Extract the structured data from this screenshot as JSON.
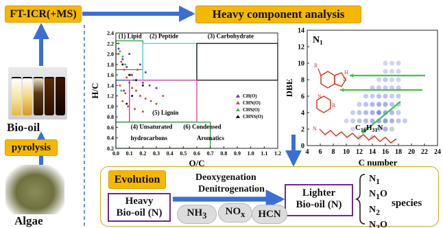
{
  "labels": {
    "ft_icr": "FT-ICR(+MS)",
    "heavy_component": "Heavy component analysis",
    "pyrolysis": "pyrolysis",
    "bio_oil": "Bio-oil",
    "algae": "Algae",
    "evolution": "Evolution",
    "heavy_bio_oil_line1": "Heavy",
    "heavy_bio_oil_line2": "Bio-oil (N)",
    "lighter_bio_oil_line1": "Lighter",
    "lighter_bio_oil_line2": "Bio-oil (N)",
    "deoxygenation": "Deoxygenation",
    "denitrogenation": "Denitrogenation",
    "species": "species",
    "gases": [
      "NH3",
      "NOx",
      "HCN"
    ]
  },
  "species_items": [
    "N1",
    "N1O",
    "N2",
    "N2O"
  ],
  "colors": {
    "accent": "#f5b800",
    "arrow_blue": "#3b6fd4",
    "box_purple": "#6b2a8e",
    "ch": "#7a2fb5",
    "chn": "#e0443e",
    "chs": "#33b84a",
    "chns": "#111111"
  },
  "chart_data": [
    {
      "type": "scatter",
      "xlabel": "O/C",
      "ylabel": "H/C",
      "xlim": [
        0,
        1.2
      ],
      "ylim": [
        0.2,
        2.4
      ],
      "xticks": [
        "0.0",
        "0.1",
        "0.2",
        "0.3",
        "0.4",
        "0.5",
        "0.6",
        "0.7",
        "0.8",
        "0.9",
        "1.0",
        "1.1",
        "1.2"
      ],
      "yticks": [
        "0.2",
        "0.4",
        "0.6",
        "0.8",
        "1.0",
        "1.2",
        "1.4",
        "1.6",
        "1.8",
        "2.0",
        "2.2",
        "2.4"
      ],
      "legend_position": "right",
      "series": [
        {
          "name": "CH(O)",
          "color": "#7a2fb5",
          "x": [
            0.02,
            0.05,
            0.08,
            0.12,
            0.15,
            0.2,
            0.25,
            0.3,
            0.18,
            0.1,
            0.06,
            0.22
          ],
          "y": [
            2.1,
            1.9,
            1.75,
            1.6,
            1.5,
            1.45,
            1.4,
            1.35,
            1.8,
            2.0,
            1.3,
            1.65
          ]
        },
        {
          "name": "CHN(O)",
          "color": "#e0443e",
          "x": [
            0.02,
            0.04,
            0.06,
            0.08,
            0.1,
            0.12,
            0.15,
            0.18,
            0.22,
            0.26,
            0.3,
            0.35,
            0.05,
            0.09,
            0.14,
            0.2,
            0.03,
            0.07,
            0.11,
            0.16
          ],
          "y": [
            2.0,
            1.85,
            1.7,
            1.55,
            1.45,
            1.35,
            1.3,
            1.2,
            1.15,
            1.1,
            1.05,
            1.2,
            1.1,
            1.0,
            0.95,
            0.9,
            1.4,
            1.25,
            1.6,
            1.7
          ]
        },
        {
          "name": "CHS(O)",
          "color": "#33b84a",
          "x": [
            0.02,
            0.03,
            0.05,
            0.07,
            0.1,
            0.13,
            0.04
          ],
          "y": [
            2.2,
            2.05,
            1.95,
            1.8,
            1.6,
            1.5,
            1.3
          ]
        },
        {
          "name": "CHNS(O)",
          "color": "#111111",
          "x": [
            0.05,
            0.1,
            0.15,
            0.2,
            0.12,
            0.08
          ],
          "y": [
            1.8,
            1.6,
            1.5,
            1.4,
            1.2,
            1.05
          ]
        }
      ],
      "annotations": [
        "(1) Lipid",
        "(2) Peptide",
        "(3) Carbohydrate",
        "(4) Unsaturated",
        "hydrocarbons",
        "(5) Lignin",
        "(6) Condensed",
        "Aromatics"
      ]
    },
    {
      "type": "scatter",
      "title": "N1",
      "xlabel": "C number",
      "ylabel": "DBE",
      "xlim": [
        4,
        24
      ],
      "ylim": [
        0,
        14
      ],
      "xticks": [
        "4",
        "6",
        "8",
        "10",
        "12",
        "14",
        "16",
        "18",
        "20",
        "22",
        "24"
      ],
      "yticks": [
        "0",
        "2",
        "4",
        "6",
        "8",
        "10",
        "12",
        "14"
      ],
      "annotation": "C16H31N",
      "points": [
        {
          "x": 10,
          "y": 3,
          "v": 0.2
        },
        {
          "x": 11,
          "y": 3,
          "v": 0.3
        },
        {
          "x": 12,
          "y": 3,
          "v": 0.4
        },
        {
          "x": 13,
          "y": 3,
          "v": 0.5
        },
        {
          "x": 14,
          "y": 3,
          "v": 0.6
        },
        {
          "x": 15,
          "y": 3,
          "v": 0.7
        },
        {
          "x": 16,
          "y": 3,
          "v": 0.8
        },
        {
          "x": 17,
          "y": 3,
          "v": 0.6
        },
        {
          "x": 18,
          "y": 3,
          "v": 0.4
        },
        {
          "x": 19,
          "y": 3,
          "v": 0.3
        },
        {
          "x": 11,
          "y": 4,
          "v": 0.3
        },
        {
          "x": 12,
          "y": 4,
          "v": 0.4
        },
        {
          "x": 13,
          "y": 4,
          "v": 0.5
        },
        {
          "x": 14,
          "y": 4,
          "v": 0.6
        },
        {
          "x": 15,
          "y": 4,
          "v": 0.9
        },
        {
          "x": 16,
          "y": 4,
          "v": 0.7
        },
        {
          "x": 17,
          "y": 4,
          "v": 0.5
        },
        {
          "x": 18,
          "y": 4,
          "v": 0.3
        },
        {
          "x": 12,
          "y": 5,
          "v": 0.3
        },
        {
          "x": 13,
          "y": 5,
          "v": 0.4
        },
        {
          "x": 14,
          "y": 5,
          "v": 0.5
        },
        {
          "x": 15,
          "y": 5,
          "v": 0.6
        },
        {
          "x": 16,
          "y": 5,
          "v": 0.6
        },
        {
          "x": 17,
          "y": 5,
          "v": 0.4
        },
        {
          "x": 18,
          "y": 5,
          "v": 0.3
        },
        {
          "x": 13,
          "y": 6,
          "v": 0.3
        },
        {
          "x": 14,
          "y": 6,
          "v": 0.3
        },
        {
          "x": 15,
          "y": 6,
          "v": 0.4
        },
        {
          "x": 16,
          "y": 6,
          "v": 0.4
        },
        {
          "x": 17,
          "y": 6,
          "v": 0.3
        },
        {
          "x": 18,
          "y": 6,
          "v": 0.3
        },
        {
          "x": 14,
          "y": 7,
          "v": 0.3
        },
        {
          "x": 15,
          "y": 7,
          "v": 0.3
        },
        {
          "x": 16,
          "y": 7,
          "v": 0.3
        },
        {
          "x": 17,
          "y": 7,
          "v": 0.3
        },
        {
          "x": 18,
          "y": 7,
          "v": 0.3
        },
        {
          "x": 15,
          "y": 8,
          "v": 0.2
        },
        {
          "x": 16,
          "y": 8,
          "v": 0.3
        },
        {
          "x": 17,
          "y": 8,
          "v": 0.2
        },
        {
          "x": 18,
          "y": 8,
          "v": 0.2
        },
        {
          "x": 16,
          "y": 9,
          "v": 0.2
        },
        {
          "x": 17,
          "y": 9,
          "v": 0.2
        },
        {
          "x": 18,
          "y": 9,
          "v": 0.2
        },
        {
          "x": 16,
          "y": 10,
          "v": 0.2
        },
        {
          "x": 17,
          "y": 10,
          "v": 0.2
        },
        {
          "x": 18,
          "y": 10,
          "v": 0.2
        },
        {
          "x": 11,
          "y": 2,
          "v": 0.2
        },
        {
          "x": 13,
          "y": 2,
          "v": 0.3
        },
        {
          "x": 15,
          "y": 2,
          "v": 0.3
        },
        {
          "x": 16,
          "y": 2,
          "v": 0.6
        },
        {
          "x": 17,
          "y": 2,
          "v": 0.3
        },
        {
          "x": 12,
          "y": 1,
          "v": 0.2
        },
        {
          "x": 14,
          "y": 1,
          "v": 0.2
        }
      ]
    }
  ]
}
